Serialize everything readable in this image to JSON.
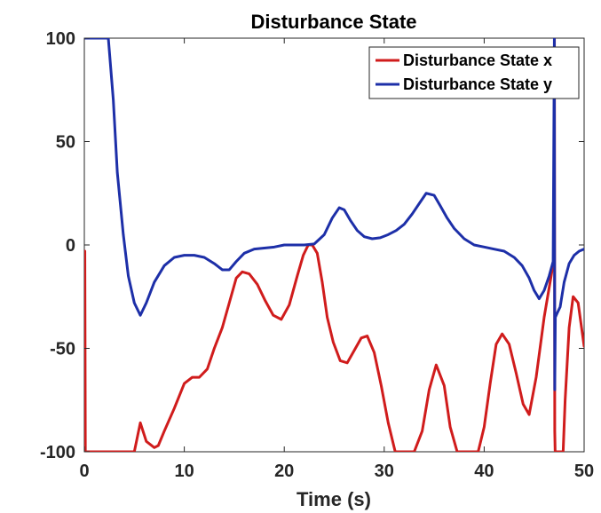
{
  "chart_data": {
    "type": "line",
    "title": "Disturbance State",
    "xlabel": "Time (s)",
    "ylabel": "",
    "xlim": [
      0,
      50
    ],
    "ylim": [
      -100,
      100
    ],
    "xticks": [
      0,
      10,
      20,
      30,
      40,
      50
    ],
    "yticks": [
      -100,
      -50,
      0,
      50,
      100
    ],
    "grid": false,
    "legend_position": "top-right",
    "series": [
      {
        "name": "Disturbance State x",
        "color": "#d01c1c",
        "x": [
          0,
          0.05,
          0.1,
          4,
          5,
          5.6,
          6.2,
          7,
          7.4,
          8,
          9,
          10,
          10.8,
          11.5,
          12.3,
          13,
          13.8,
          14.5,
          15.2,
          15.8,
          16.5,
          17.3,
          18.1,
          18.9,
          19.7,
          20.5,
          21.3,
          21.9,
          22.4,
          22.8,
          23.3,
          23.8,
          24.3,
          24.9,
          25.6,
          26.3,
          27,
          27.7,
          28.3,
          29,
          29.7,
          30.4,
          31.1,
          31.8,
          32.2,
          33,
          33.8,
          34.5,
          35.2,
          36,
          36.6,
          37.3,
          38,
          39.4,
          40,
          40.6,
          41.2,
          41.8,
          42.5,
          43.2,
          43.9,
          44.5,
          45.2,
          46,
          46.7,
          47.0,
          47.03,
          47.06,
          47.1,
          47.2,
          47.3,
          47.6,
          47.9,
          48.1,
          48.5,
          48.9,
          49.4,
          50
        ],
        "y": [
          -100,
          -3,
          -100,
          -100,
          -100,
          -86,
          -95,
          -98,
          -97,
          -90,
          -79,
          -67,
          -64,
          -64,
          -60,
          -50,
          -40,
          -28,
          -16,
          -13,
          -14,
          -19,
          -27,
          -34,
          -36,
          -29,
          -15,
          -5,
          0,
          0,
          -4,
          -18,
          -35,
          -47,
          -56,
          -57,
          -51,
          -45,
          -44,
          -52,
          -68,
          -86,
          -100,
          -100,
          -100,
          -100,
          -90,
          -70,
          -58,
          -68,
          -88,
          -100,
          -100,
          -100,
          -88,
          -67,
          -48,
          -43,
          -48,
          -62,
          -77,
          -82,
          -64,
          -35,
          -15,
          -6,
          100,
          -90,
          -100,
          -100,
          -100,
          -100,
          -100,
          -75,
          -40,
          -25,
          -28,
          -49
        ]
      },
      {
        "name": "Disturbance State y",
        "color": "#1d2fa8",
        "x": [
          0,
          1.5,
          2.4,
          2.9,
          3.3,
          3.9,
          4.4,
          5.0,
          5.6,
          6.2,
          7,
          8,
          9,
          10,
          11,
          12,
          13,
          13.8,
          14.5,
          15.2,
          16,
          17,
          18,
          19,
          20,
          21,
          22,
          23,
          24,
          24.8,
          25.5,
          26,
          26.6,
          27.3,
          28,
          28.8,
          29.6,
          30.4,
          31.2,
          32,
          32.8,
          33.5,
          34.2,
          35,
          35.6,
          36.3,
          37,
          38,
          39,
          40,
          41,
          42,
          43,
          43.8,
          44.5,
          45,
          45.5,
          46,
          46.5,
          46.9,
          47.02,
          47.06,
          47.12,
          47.3,
          47.6,
          48.0,
          48.5,
          49.0,
          49.5,
          50
        ],
        "y": [
          100,
          100,
          100,
          70,
          35,
          5,
          -15,
          -28,
          -34,
          -28,
          -18,
          -10,
          -6,
          -5,
          -5,
          -6,
          -9,
          -12,
          -12,
          -8,
          -4,
          -2,
          -1.5,
          -1,
          0,
          0,
          0,
          0.5,
          5,
          13,
          18,
          17,
          12,
          7,
          4,
          3,
          3.5,
          5,
          7,
          10,
          15,
          20,
          25,
          24,
          19,
          13,
          8,
          3,
          0,
          -1,
          -2,
          -3,
          -6,
          -10,
          -16,
          -22,
          -26,
          -22,
          -15,
          -8,
          100,
          -70,
          -35,
          -33,
          -30,
          -18,
          -9,
          -5,
          -3,
          -2
        ]
      }
    ]
  }
}
